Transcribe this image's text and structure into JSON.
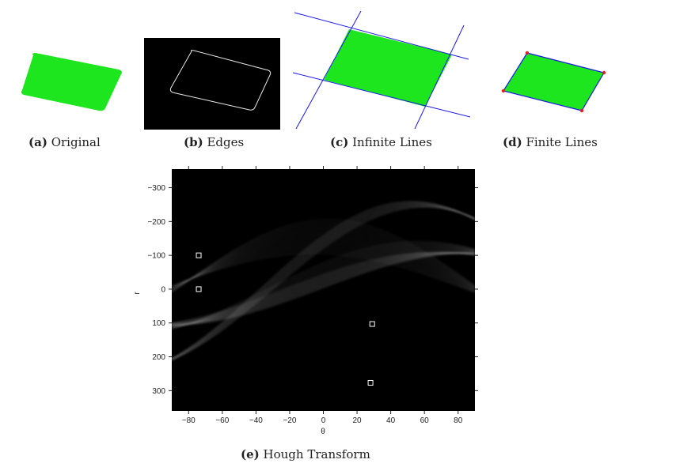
{
  "figures": [
    {
      "id": "a",
      "tag": "(a)",
      "label": "Original"
    },
    {
      "id": "b",
      "tag": "(b)",
      "label": "Edges"
    },
    {
      "id": "c",
      "tag": "(c)",
      "label": "Infinite Lines"
    },
    {
      "id": "d",
      "tag": "(d)",
      "label": "Finite Lines"
    },
    {
      "id": "e",
      "tag": "(e)",
      "label": "Hough Transform"
    }
  ],
  "colors": {
    "shape_fill": "#1ee61e",
    "line_blue": "#1a1ae6",
    "corner_red": "#e02020",
    "edge_bg": "#000000",
    "edge_line": "#e8e8e8"
  },
  "hough": {
    "xlabel": "θ",
    "ylabel": "r",
    "x_ticks": [
      "−80",
      "−60",
      "−40",
      "−20",
      "0",
      "20",
      "40",
      "60",
      "80"
    ],
    "y_ticks": [
      "−300",
      "−200",
      "−100",
      "0",
      "100",
      "200",
      "300"
    ]
  },
  "chart_data": {
    "type": "heatmap",
    "title": "",
    "xlabel": "θ",
    "ylabel": "r",
    "xlim": [
      -90,
      90
    ],
    "ylim": [
      -355,
      360
    ],
    "y_inverted": true,
    "x_ticks": [
      -80,
      -60,
      -40,
      -20,
      0,
      20,
      40,
      60,
      80
    ],
    "y_ticks": [
      -300,
      -200,
      -100,
      0,
      100,
      200,
      300
    ],
    "peaks": [
      {
        "theta": -74,
        "r": -100
      },
      {
        "theta": -74,
        "r": 0
      },
      {
        "theta": 29,
        "r": 103
      },
      {
        "theta": 28,
        "r": 277
      }
    ]
  }
}
